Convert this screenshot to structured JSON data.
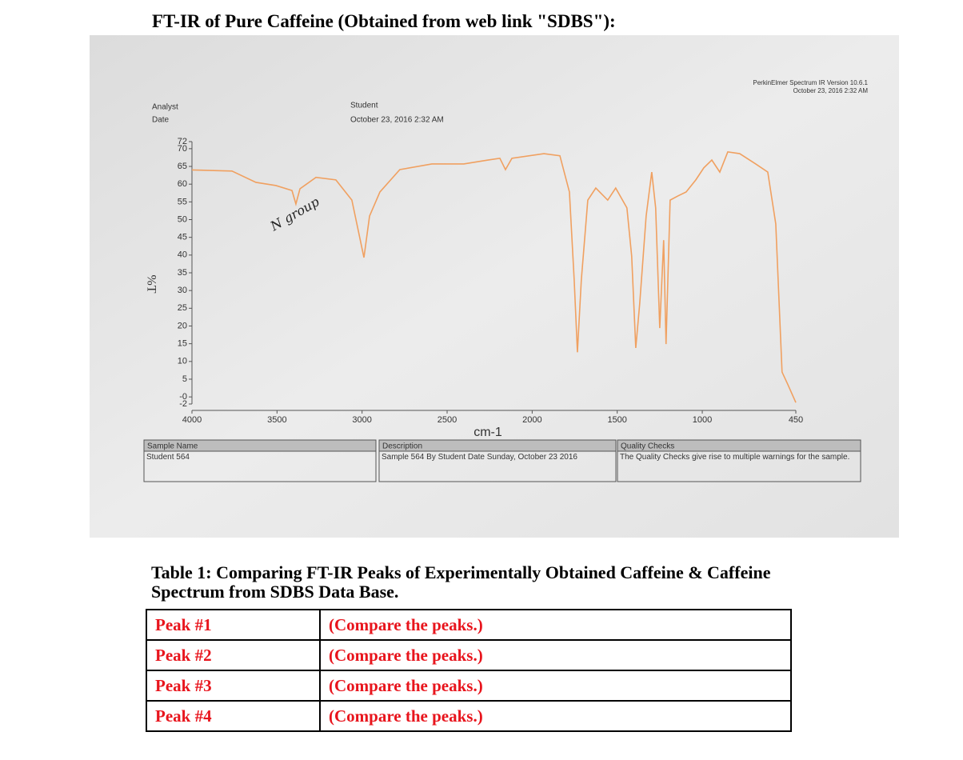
{
  "title": "FT-IR of Pure Caffeine (Obtained from web link \"SDBS\"):",
  "chart_data": {
    "type": "line",
    "software": "PerkinElmer Spectrum IR Version 10.6.1",
    "software_date": "October 23, 2016 2:32 AM",
    "analyst_label": "Analyst",
    "date_label": "Date",
    "analyst": "Student",
    "date": "October 23, 2016 2:32 AM",
    "ylabel": "%T",
    "xlabel": "cm-1",
    "annotation": "N group",
    "color": "#f0a060",
    "xlim": [
      4000,
      450
    ],
    "xticks": [
      4000,
      3500,
      3000,
      2500,
      2000,
      1500,
      1000,
      450
    ],
    "ylim": [
      -2,
      72
    ],
    "yticks": [
      72,
      70,
      65,
      60,
      55,
      50,
      45,
      40,
      35,
      30,
      25,
      20,
      15,
      10,
      5,
      {
        "value": 0,
        "label": "-0"
      },
      -2
    ],
    "x": [
      4000,
      3765,
      3624,
      3506,
      3412,
      3389,
      3365,
      3271,
      3154,
      3060,
      2989,
      2956,
      2895,
      2778,
      2590,
      2402,
      2260,
      2190,
      2157,
      2119,
      1931,
      1837,
      1781,
      1753,
      1734,
      1711,
      1673,
      1626,
      1556,
      1509,
      1443,
      1415,
      1391,
      1368,
      1330,
      1297,
      1274,
      1250,
      1227,
      1213,
      1189,
      1142,
      1095,
      1038,
      991,
      944,
      897,
      850,
      780,
      686,
      615,
      568,
      531,
      498,
      450
    ],
    "values": [
      64,
      63.7,
      60.5,
      59.6,
      58.2,
      54.4,
      58.7,
      61.9,
      61.2,
      55.5,
      39.3,
      51,
      57.8,
      64.1,
      65.7,
      65.7,
      66.8,
      67.3,
      64.1,
      67.3,
      68.6,
      68,
      57.8,
      33,
      12.6,
      33,
      55.5,
      58.9,
      55.5,
      58.9,
      53.3,
      39.7,
      13.8,
      26.2,
      51,
      63.4,
      53.3,
      19.4,
      44.2,
      14.9,
      55.5,
      56.7,
      57.8,
      61.2,
      64.6,
      66.8,
      63.4,
      69.1,
      68.6,
      65.7,
      63.4,
      48.8,
      7,
      3.6,
      -1.6
    ]
  },
  "info_boxes": [
    {
      "heading": "Sample Name",
      "text": "Student 564"
    },
    {
      "heading": "Description",
      "text": "Sample 564 By Student Date Sunday, October 23 2016"
    },
    {
      "heading": "Quality Checks",
      "text": "The Quality Checks give rise to multiple warnings for the sample."
    }
  ],
  "table": {
    "caption": "Table 1:  Comparing FT-IR Peaks of Experimentally Obtained Caffeine & Caffeine Spectrum from SDBS Data Base.",
    "rows": [
      [
        "Peak #1",
        "(Compare the peaks.)"
      ],
      [
        "Peak #2",
        "(Compare the peaks.)"
      ],
      [
        "Peak #3",
        "(Compare the peaks.)"
      ],
      [
        "Peak #4",
        "(Compare the peaks.)"
      ]
    ]
  }
}
